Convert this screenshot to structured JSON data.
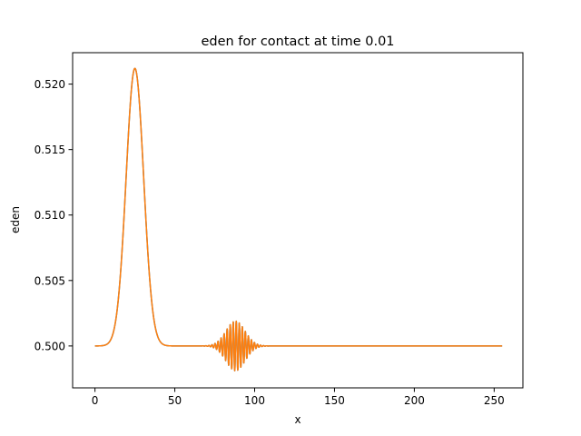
{
  "chart_data": {
    "type": "line",
    "title": "eden for contact at time 0.01",
    "xlabel": "x",
    "ylabel": "eden",
    "xlim": [
      -14,
      268
    ],
    "ylim": [
      0.4968,
      0.5224
    ],
    "xticks": [
      0,
      50,
      100,
      150,
      200,
      250
    ],
    "xtick_labels": [
      "0",
      "50",
      "100",
      "150",
      "200",
      "250"
    ],
    "yticks": [
      0.5,
      0.505,
      0.51,
      0.515,
      0.52
    ],
    "ytick_labels": [
      "0.500",
      "0.505",
      "0.510",
      "0.515",
      "0.520"
    ],
    "grid": false,
    "series": [
      {
        "color": "#1f77b4",
        "x_range": [
          0,
          255
        ],
        "baseline": 0.5,
        "gaussian_peak": {
          "center": 25,
          "height": 0.0212,
          "width": 5.5
        },
        "wave_packet": {
          "center": 88,
          "amplitude": 0.0019,
          "width": 6,
          "period": 1.9
        }
      },
      {
        "color": "#ff7f0e",
        "x_range": [
          0,
          255
        ],
        "baseline": 0.5,
        "gaussian_peak": {
          "center": 25,
          "height": 0.0212,
          "width": 5.5
        },
        "wave_packet": {
          "center": 88,
          "amplitude": 0.0019,
          "width": 6,
          "period": 1.9
        }
      }
    ]
  }
}
